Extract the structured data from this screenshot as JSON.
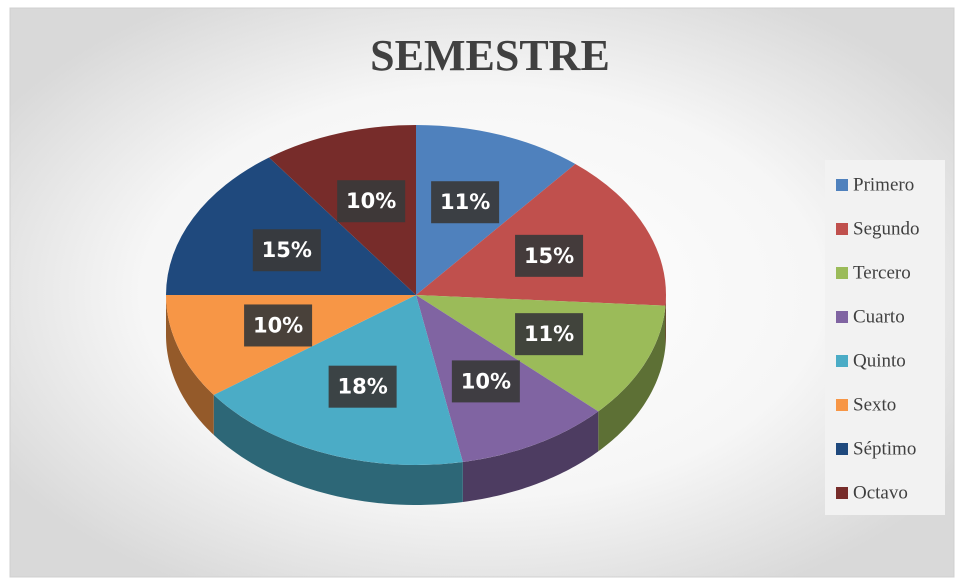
{
  "chart_data": {
    "type": "pie",
    "title": "SEMESTRE",
    "categories": [
      "Primero",
      "Segundo",
      "Tercero",
      "Cuarto",
      "Quinto",
      "Sexto",
      "Séptimo",
      "Octavo"
    ],
    "values": [
      11,
      15,
      11,
      10,
      18,
      10,
      15,
      10
    ],
    "value_labels": [
      "11%",
      "15%",
      "11%",
      "10%",
      "18%",
      "10%",
      "15%",
      "10%"
    ],
    "colors": [
      "#4f81bd",
      "#c0504d",
      "#9bbb59",
      "#8064a2",
      "#4bacc6",
      "#f79646",
      "#1f497d",
      "#772c2a"
    ],
    "legend": "right"
  }
}
